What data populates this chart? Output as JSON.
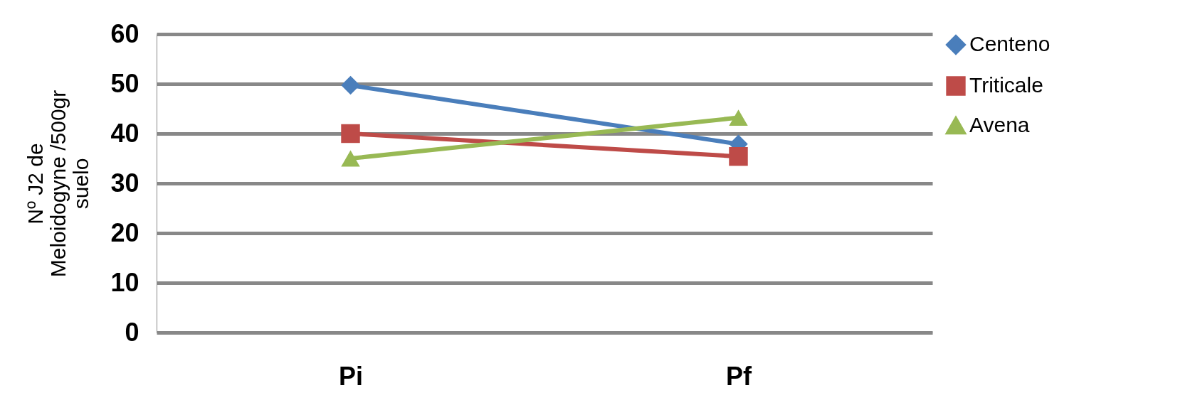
{
  "chart_data": {
    "type": "line",
    "ylabel": "Nº  J2 de Meloidogyne /500gr suelo",
    "categories": [
      "Pi",
      "Pf"
    ],
    "series": [
      {
        "name": "Centeno",
        "color": "#4a7ebb",
        "marker": "diamond",
        "values": [
          49.7,
          37.9
        ]
      },
      {
        "name": "Triticale",
        "color": "#be4b48",
        "marker": "square",
        "values": [
          40,
          35.4
        ]
      },
      {
        "name": "Avena",
        "color": "#98b954",
        "marker": "triangle",
        "values": [
          35,
          43.2
        ]
      }
    ],
    "ylim": [
      0,
      60
    ],
    "yticks": [
      0,
      10,
      20,
      30,
      40,
      50,
      60
    ],
    "grid": "y",
    "legend": "right"
  }
}
